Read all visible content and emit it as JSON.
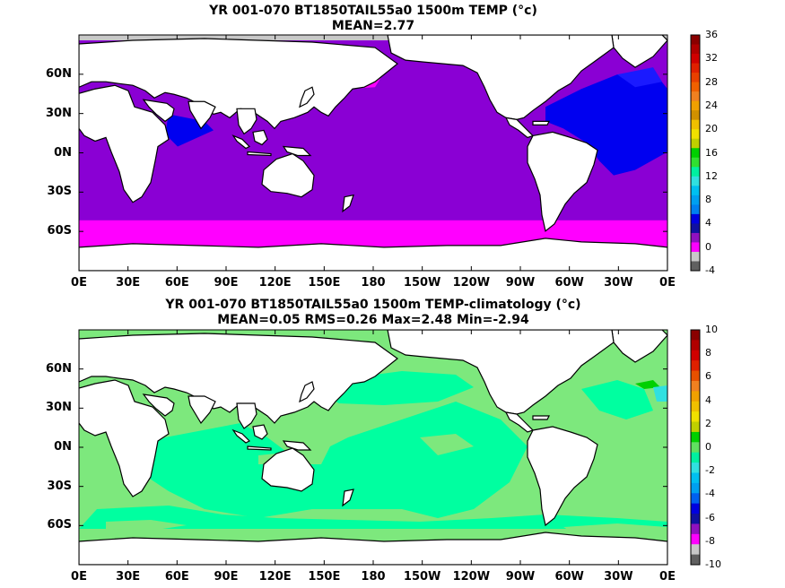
{
  "panels": [
    {
      "title_line1": "YR 001-070 BT1850TAIL55a0 1500m TEMP (°c)",
      "title_line2": "MEAN=2.77",
      "colorbar": {
        "labels": [
          "36",
          "32",
          "28",
          "24",
          "20",
          "16",
          "12",
          "8",
          "4",
          "0",
          "-4"
        ],
        "colors": [
          "#8b0000",
          "#b00000",
          "#d00000",
          "#e02000",
          "#e84000",
          "#f06000",
          "#f08020",
          "#f0a000",
          "#d09000",
          "#f0c000",
          "#f0e000",
          "#c0d000",
          "#00d000",
          "#30e030",
          "#00f0a0",
          "#30e0e0",
          "#00c0f0",
          "#00a0f0",
          "#0080f0",
          "#0000e0",
          "#1010a0",
          "#9010c0",
          "#ff00ff",
          "#c8c8c8",
          "#606060"
        ]
      }
    },
    {
      "title_line1": "YR 001-070 BT1850TAIL55a0 1500m TEMP-climatology (°c)",
      "title_line2": "MEAN=0.05   RMS=0.26   Max=2.48   Min=-2.94",
      "colorbar": {
        "labels": [
          "10",
          "8",
          "6",
          "4",
          "2",
          "0",
          "-2",
          "-4",
          "-6",
          "-8",
          "-10"
        ],
        "colors": [
          "#8b0000",
          "#b00000",
          "#d00000",
          "#e02000",
          "#e85000",
          "#f08020",
          "#f0a000",
          "#f0c000",
          "#f0e000",
          "#c0d000",
          "#00d000",
          "#60e060",
          "#00f0a0",
          "#30e0e0",
          "#00c0f0",
          "#00a0f0",
          "#0060f0",
          "#0000e0",
          "#1010a0",
          "#9010c0",
          "#ff00ff",
          "#c8c8c8",
          "#606060"
        ]
      }
    }
  ],
  "x_axis_labels": [
    "0E",
    "30E",
    "60E",
    "90E",
    "120E",
    "150E",
    "180",
    "150W",
    "120W",
    "90W",
    "60W",
    "30W",
    "0E"
  ],
  "y_axis_labels": [
    "60N",
    "30N",
    "0N",
    "30S",
    "60S"
  ],
  "colors": {
    "land": "#ffffff",
    "coastline": "#000000",
    "missing": "#c8c8c8",
    "top_ocean": "#8a00d4",
    "top_southern": "#ff00ff",
    "top_atlantic": "#0000f0",
    "bottom_ocean": "#00ffa0",
    "bottom_mid": "#7de87d"
  }
}
